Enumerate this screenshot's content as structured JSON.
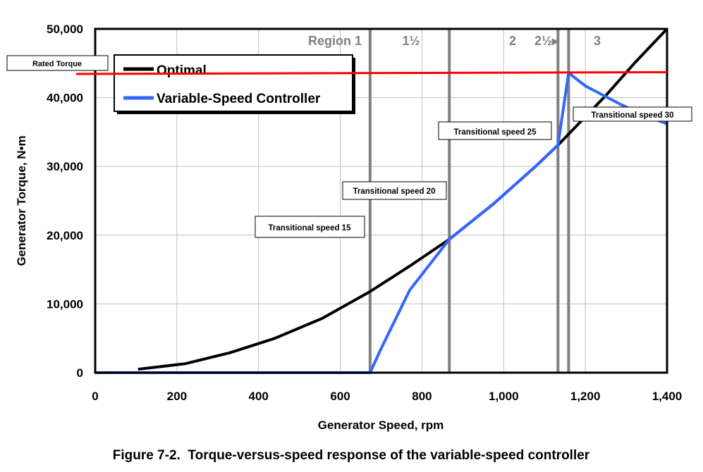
{
  "chart_data": {
    "type": "line",
    "title": "",
    "caption": "Figure 7-2.  Torque-versus-speed response of the variable-speed controller",
    "xlabel": "Generator Speed, rpm",
    "ylabel": "Generator Torque, N•m",
    "xlim": [
      0,
      1400
    ],
    "ylim": [
      0,
      50000
    ],
    "grid": true,
    "xticks": [
      0,
      200,
      400,
      600,
      800,
      1000,
      1200,
      1400
    ],
    "xtick_labels": [
      "0",
      "200",
      "400",
      "600",
      "800",
      "1,000",
      "1,200",
      "1,400"
    ],
    "yticks": [
      0,
      10000,
      20000,
      30000,
      40000,
      50000
    ],
    "ytick_labels": [
      "0",
      "10,000",
      "20,000",
      "30,000",
      "40,000",
      "50,000"
    ],
    "legend_placement": "top-left",
    "series": [
      {
        "name": "Optimal",
        "color": "#000000",
        "x": [
          105,
          220,
          330,
          440,
          556,
          673,
          770,
          867,
          976,
          1080,
          1133,
          1159,
          1250,
          1320,
          1400
        ],
        "y": [
          500,
          1300,
          2900,
          5000,
          7900,
          11800,
          15500,
          19400,
          24600,
          30100,
          33100,
          34700,
          40300,
          45000,
          50000
        ]
      },
      {
        "name": "Variable-Speed Controller",
        "color": "#3366ff",
        "x": [
          0,
          673,
          700,
          770,
          867,
          976,
          1080,
          1133,
          1159,
          1200,
          1287,
          1350,
          1400
        ],
        "y": [
          0,
          0,
          3500,
          12000,
          19400,
          24600,
          30100,
          33100,
          43600,
          41700,
          39000,
          37300,
          36200
        ]
      }
    ],
    "reference_lines": {
      "rated_torque": {
        "label": "Rated Torque",
        "value": 43600,
        "color": "#ff0000"
      }
    },
    "region_boundaries": [
      673,
      867,
      1133,
      1159
    ],
    "region_labels": [
      "Region 1",
      "1½",
      "2",
      "2½▸",
      "3"
    ],
    "annotations": [
      "Transitional speed 15",
      "Transitional speed 20",
      "Transitional speed 25",
      "Transitional speed 30"
    ]
  }
}
